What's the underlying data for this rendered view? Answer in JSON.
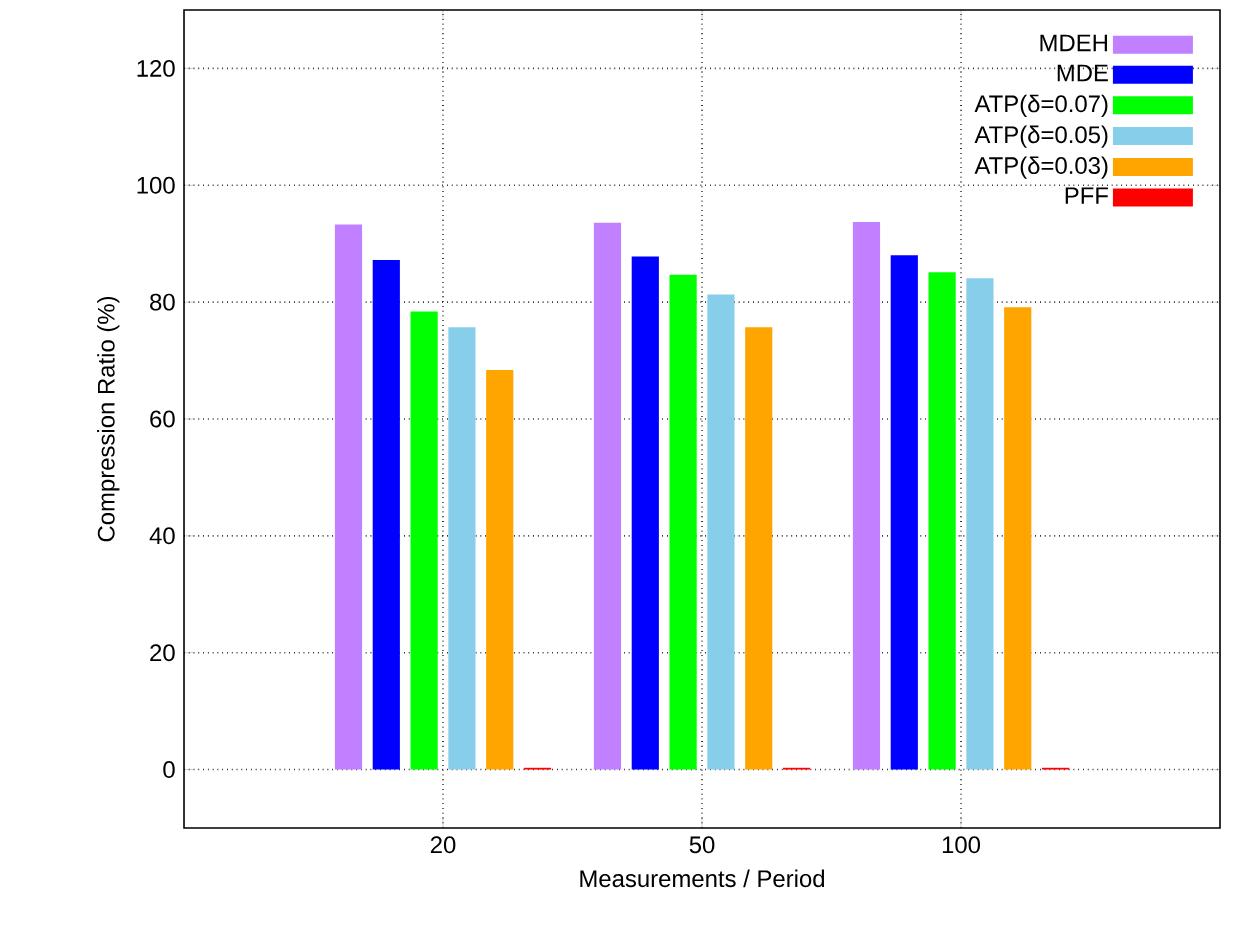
{
  "chart_data": {
    "type": "bar",
    "xlabel": "Measurements  / Period",
    "ylabel": "Compression Ratio (%)",
    "categories": [
      "20",
      "50",
      "100"
    ],
    "series": [
      {
        "name": "MDEH",
        "color": "#c080ff",
        "values": [
          93.3,
          93.6,
          93.7
        ]
      },
      {
        "name": "MDE",
        "color": "#0000ff",
        "values": [
          87.2,
          87.8,
          88.0
        ]
      },
      {
        "name": "ATP(δ=0.07)",
        "color": "#00ff00",
        "values": [
          78.4,
          84.7,
          85.1
        ]
      },
      {
        "name": "ATP(δ=0.05)",
        "color": "#87ceeb",
        "values": [
          75.7,
          81.3,
          84.1
        ]
      },
      {
        "name": "ATP(δ=0.03)",
        "color": "#ffa500",
        "values": [
          68.4,
          75.7,
          79.1
        ]
      },
      {
        "name": "PFF",
        "color": "#ff0000",
        "values": [
          0.3,
          0.3,
          0.3
        ]
      }
    ],
    "ylim": [
      -10,
      130
    ],
    "yticks": [
      0,
      20,
      40,
      60,
      80,
      100,
      120
    ],
    "grid": true,
    "legend": "top right"
  }
}
